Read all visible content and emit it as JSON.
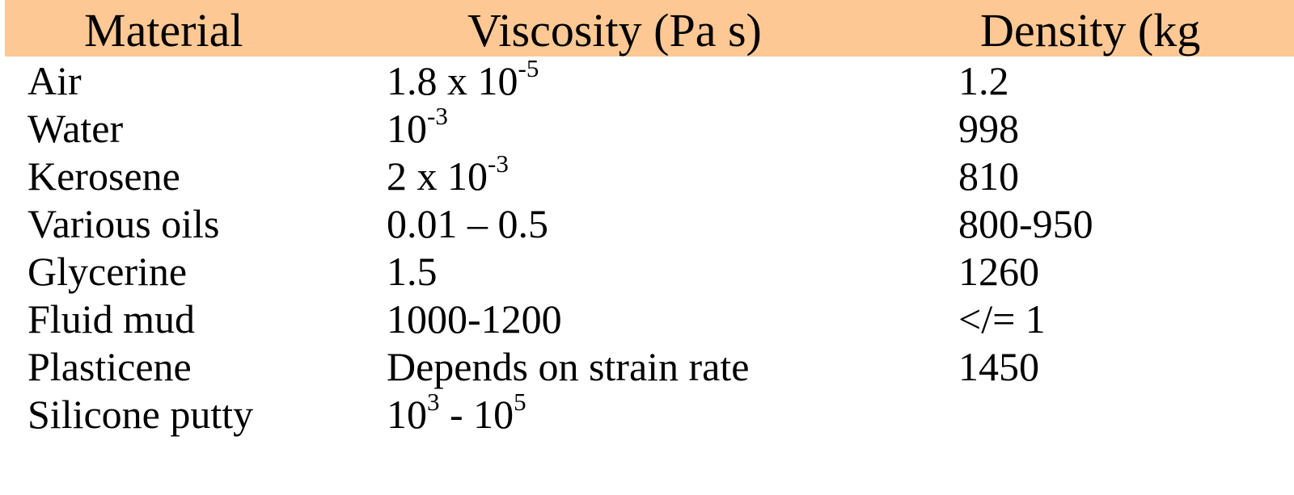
{
  "colors": {
    "header_background": "#fdc894",
    "text": "#000000",
    "background": "#ffffff"
  },
  "table": {
    "headers": [
      "Material",
      "Viscosity (Pa s)",
      "Density (kg"
    ],
    "rows": [
      {
        "material": "Air",
        "viscosity": {
          "base": "1.8 x 10",
          "exp": "-5",
          "tail": ""
        },
        "density": "1.2"
      },
      {
        "material": "Water",
        "viscosity": {
          "base": "10",
          "exp": "-3",
          "tail": ""
        },
        "density": "998"
      },
      {
        "material": "Kerosene",
        "viscosity": {
          "base": "2 x 10",
          "exp": "-3",
          "tail": ""
        },
        "density": "810"
      },
      {
        "material": "Various oils",
        "viscosity": {
          "base": "0.01 – 0.5",
          "exp": "",
          "tail": ""
        },
        "density": "800-950"
      },
      {
        "material": "Glycerine",
        "viscosity": {
          "base": "1.5",
          "exp": "",
          "tail": ""
        },
        "density": "1260"
      },
      {
        "material": "Fluid mud",
        "viscosity": {
          "base": "1000-1200",
          "exp": "",
          "tail": ""
        },
        "density": "</= 1"
      },
      {
        "material": "Plasticene",
        "viscosity": {
          "base": "Depends on strain rate",
          "exp": "",
          "tail": ""
        },
        "density": "1450"
      },
      {
        "material": "Silicone putty",
        "viscosity": {
          "base": "10",
          "exp": "3",
          "tail": " - 10",
          "exp2": "5"
        },
        "density": ""
      }
    ]
  }
}
